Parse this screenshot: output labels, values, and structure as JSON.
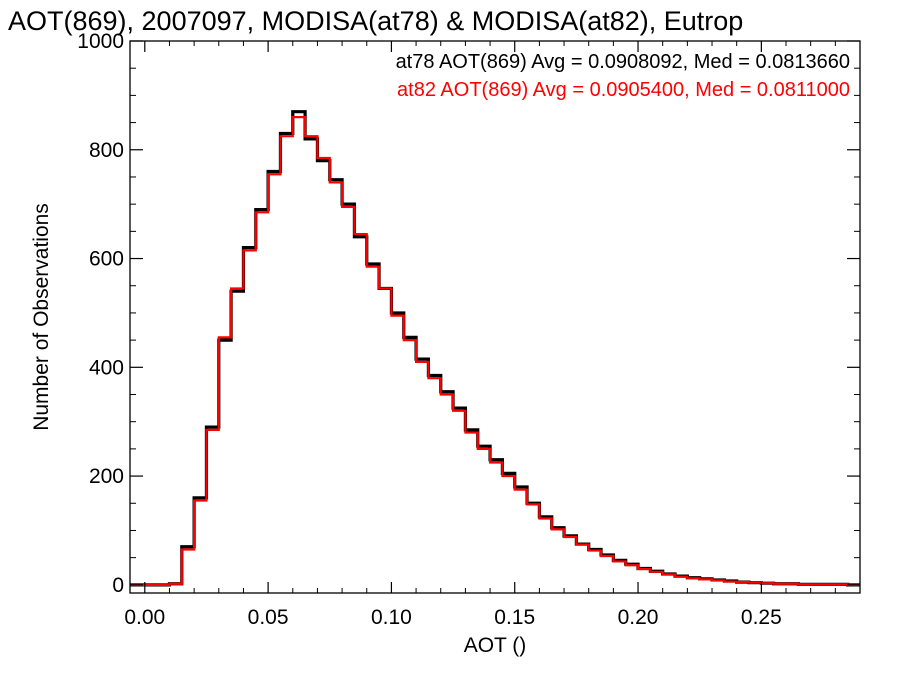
{
  "chart_data": {
    "type": "line",
    "subtype": "step-histogram",
    "title": "AOT(869), 2007097, MODISA(at78) & MODISA(at82), Eutrop",
    "xlabel": "AOT ()",
    "ylabel": "Number of Observations",
    "xlim": [
      -0.006,
      0.29
    ],
    "ylim": [
      -15,
      1000
    ],
    "xticks": [
      0.0,
      0.05,
      0.1,
      0.15,
      0.2,
      0.25
    ],
    "xtick_labels": [
      "0.00",
      "0.05",
      "0.10",
      "0.15",
      "0.20",
      "0.25"
    ],
    "yticks": [
      0,
      200,
      400,
      600,
      800,
      1000
    ],
    "ytick_labels": [
      "0",
      "200",
      "400",
      "600",
      "800",
      "1000"
    ],
    "grid": false,
    "legend": "top-right",
    "series": [
      {
        "name": "at78",
        "color": "#000000",
        "stat_label": "at78 AOT(869) Avg = 0.0908092, Med = 0.0813660",
        "x": [
          0.0,
          0.005,
          0.01,
          0.015,
          0.02,
          0.025,
          0.03,
          0.035,
          0.04,
          0.045,
          0.05,
          0.055,
          0.06,
          0.065,
          0.07,
          0.075,
          0.08,
          0.085,
          0.09,
          0.095,
          0.1,
          0.105,
          0.11,
          0.115,
          0.12,
          0.125,
          0.13,
          0.135,
          0.14,
          0.145,
          0.15,
          0.155,
          0.16,
          0.165,
          0.17,
          0.175,
          0.18,
          0.185,
          0.19,
          0.195,
          0.2,
          0.205,
          0.21,
          0.215,
          0.22,
          0.225,
          0.23,
          0.235,
          0.24,
          0.245,
          0.25,
          0.255,
          0.26,
          0.265,
          0.27,
          0.275,
          0.28,
          0.285
        ],
        "y": [
          0,
          0,
          2,
          70,
          160,
          290,
          450,
          540,
          620,
          690,
          760,
          830,
          870,
          820,
          780,
          745,
          700,
          640,
          590,
          545,
          500,
          455,
          415,
          385,
          355,
          325,
          285,
          255,
          230,
          205,
          180,
          150,
          125,
          105,
          90,
          75,
          65,
          55,
          45,
          38,
          30,
          25,
          20,
          16,
          13,
          11,
          9,
          7,
          5,
          4,
          3,
          2,
          2,
          1,
          1,
          1,
          1,
          0
        ]
      },
      {
        "name": "at82",
        "color": "#ff0000",
        "stat_label": "at82 AOT(869) Avg = 0.0905400, Med = 0.0811000",
        "x": [
          0.0,
          0.005,
          0.01,
          0.015,
          0.02,
          0.025,
          0.03,
          0.035,
          0.04,
          0.045,
          0.05,
          0.055,
          0.06,
          0.065,
          0.07,
          0.075,
          0.08,
          0.085,
          0.09,
          0.095,
          0.1,
          0.105,
          0.11,
          0.115,
          0.12,
          0.125,
          0.13,
          0.135,
          0.14,
          0.145,
          0.15,
          0.155,
          0.16,
          0.165,
          0.17,
          0.175,
          0.18,
          0.185,
          0.19,
          0.195,
          0.2,
          0.205,
          0.21,
          0.215,
          0.22,
          0.225,
          0.23,
          0.235,
          0.24,
          0.245,
          0.25,
          0.255,
          0.26,
          0.265,
          0.27,
          0.275,
          0.28,
          0.285
        ],
        "y": [
          0,
          0,
          2,
          65,
          155,
          285,
          455,
          545,
          615,
          685,
          755,
          825,
          860,
          825,
          785,
          740,
          695,
          645,
          585,
          545,
          495,
          450,
          410,
          380,
          350,
          320,
          280,
          250,
          225,
          200,
          175,
          148,
          122,
          102,
          88,
          74,
          63,
          53,
          43,
          36,
          29,
          24,
          19,
          15,
          12,
          10,
          8,
          6,
          5,
          4,
          3,
          2,
          2,
          1,
          1,
          1,
          1,
          0
        ]
      }
    ]
  }
}
